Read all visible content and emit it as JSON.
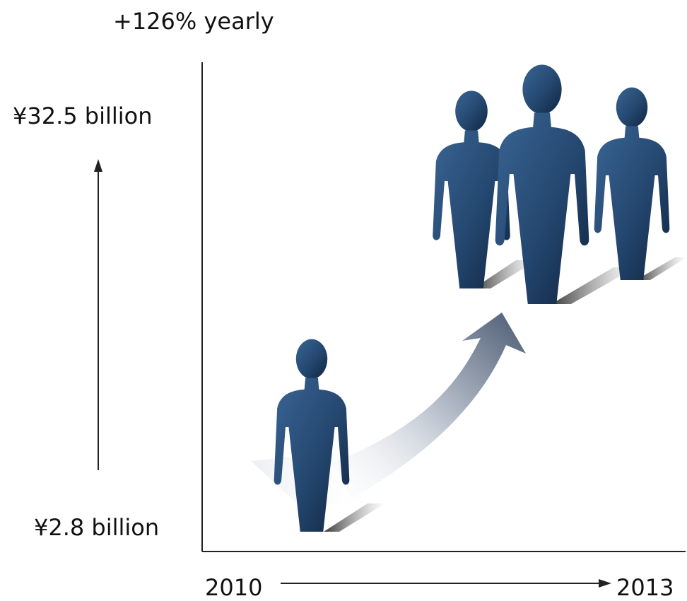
{
  "growth_label": "+126% yearly",
  "value_top": "¥32.5 billion",
  "value_bottom": "¥2.8 billion",
  "year_start": "2010",
  "year_end": "2013",
  "colors": {
    "figure": "#2b4f78",
    "figure_dark": "#17324f",
    "axis": "#222222",
    "arrow": "#4e5f78"
  }
}
